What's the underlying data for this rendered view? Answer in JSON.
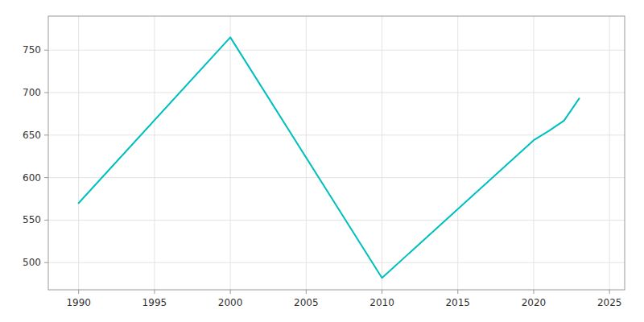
{
  "chart_data": {
    "type": "line",
    "x": [
      1990,
      2000,
      2010,
      2020,
      2021,
      2022,
      2023
    ],
    "values": [
      570,
      765,
      482,
      644,
      655,
      667,
      693
    ],
    "color": "#00BFBF",
    "xlim": [
      1988,
      2026
    ],
    "ylim": [
      468,
      790
    ],
    "xticks": [
      1990,
      1995,
      2000,
      2005,
      2010,
      2015,
      2020,
      2025
    ],
    "yticks": [
      500,
      550,
      600,
      650,
      700,
      750
    ],
    "grid": true
  }
}
